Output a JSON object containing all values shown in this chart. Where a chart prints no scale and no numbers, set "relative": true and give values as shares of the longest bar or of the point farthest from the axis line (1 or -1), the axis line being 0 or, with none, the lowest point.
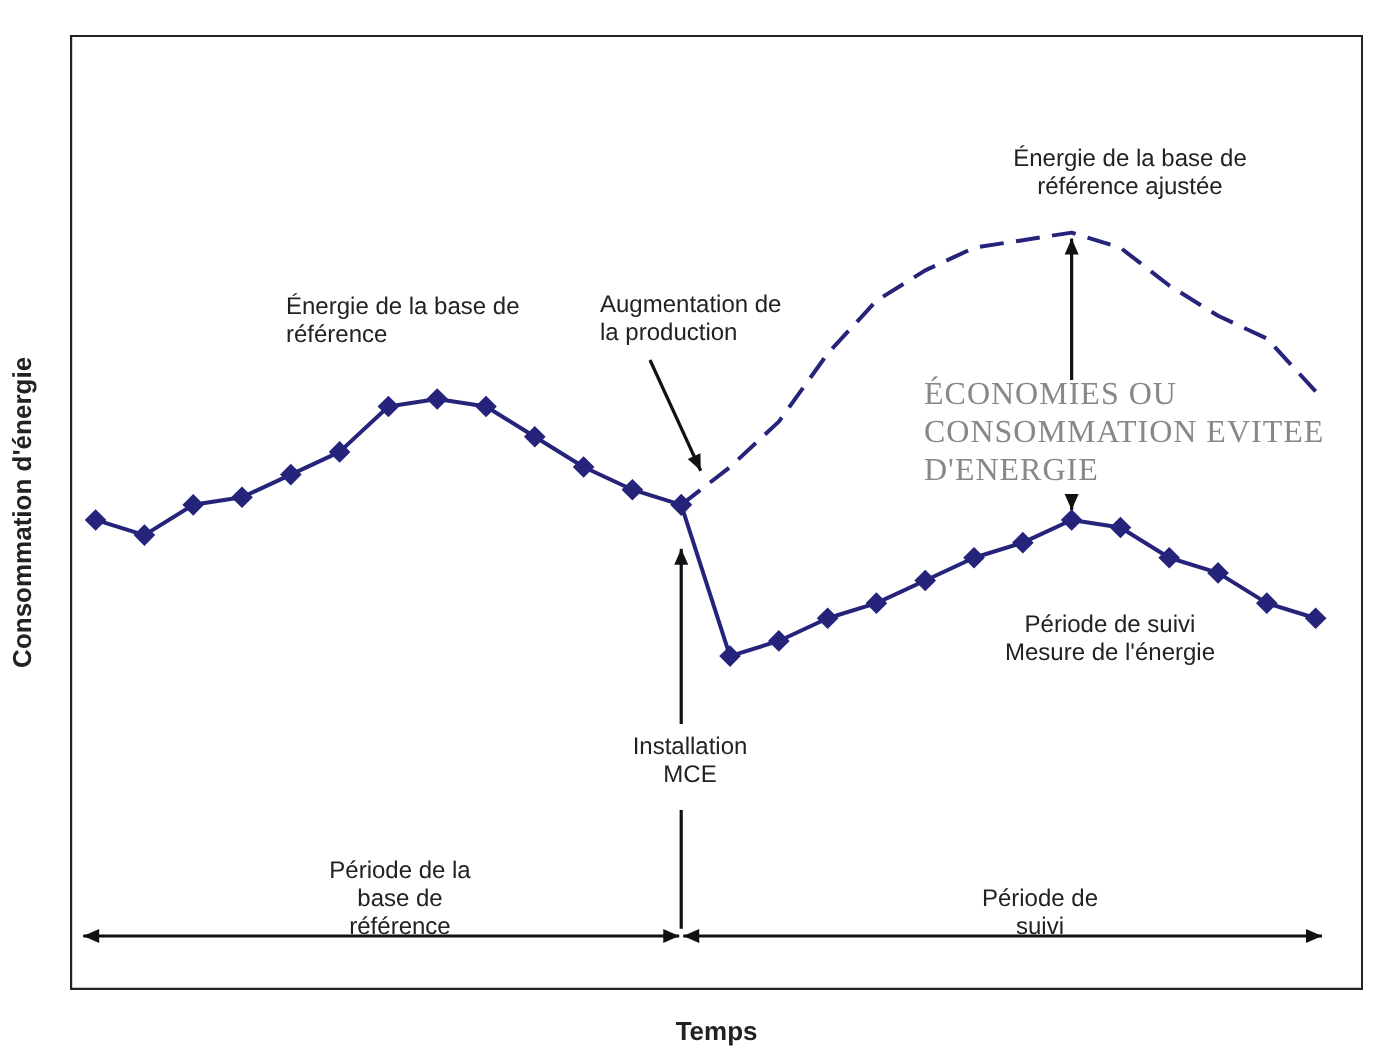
{
  "chart_data": {
    "type": "line",
    "xlabel": "Temps",
    "ylabel": "Consommation d'énergie",
    "relative": true,
    "legend": false,
    "categories": [
      null,
      null,
      null,
      null,
      null,
      null,
      null,
      null,
      null,
      null,
      null,
      null,
      null,
      null,
      null,
      null,
      null,
      null,
      null,
      null,
      null,
      null,
      null,
      null,
      null,
      null
    ],
    "series": [
      {
        "name": "Énergie de la base de référence",
        "color": "#25237a",
        "marker": "diamond",
        "line_style": "solid",
        "values": [
          0.62,
          0.6,
          0.64,
          0.65,
          0.68,
          0.71,
          0.77,
          0.78,
          0.77,
          0.73,
          0.69,
          0.66,
          0.64,
          null,
          null,
          null,
          null,
          null,
          null,
          null,
          null,
          null,
          null,
          null,
          null,
          null
        ]
      },
      {
        "name": "Énergie de la base de référence ajustée",
        "color": "#25237a",
        "marker": "none",
        "line_style": "dashed",
        "values": [
          null,
          null,
          null,
          null,
          null,
          null,
          null,
          null,
          null,
          null,
          null,
          null,
          0.64,
          0.69,
          0.75,
          0.84,
          0.91,
          0.95,
          0.98,
          0.99,
          1.0,
          0.98,
          0.93,
          0.89,
          0.86,
          0.79
        ]
      },
      {
        "name": "Période de suivi Mesure de l'énergie",
        "color": "#25237a",
        "marker": "diamond",
        "line_style": "solid",
        "values": [
          null,
          null,
          null,
          null,
          null,
          null,
          null,
          null,
          null,
          null,
          null,
          null,
          0.64,
          0.44,
          0.46,
          0.49,
          0.51,
          0.54,
          0.57,
          0.59,
          0.62,
          0.61,
          0.57,
          0.55,
          0.51,
          0.49
        ]
      }
    ],
    "annotations": [
      "Augmentation de la production",
      "ÉCONOMIES OU CONSOMMATION EVITEE D'ENERGIE",
      "Installation MCE",
      "Période de la base de référence",
      "Période de suivi"
    ]
  }
}
